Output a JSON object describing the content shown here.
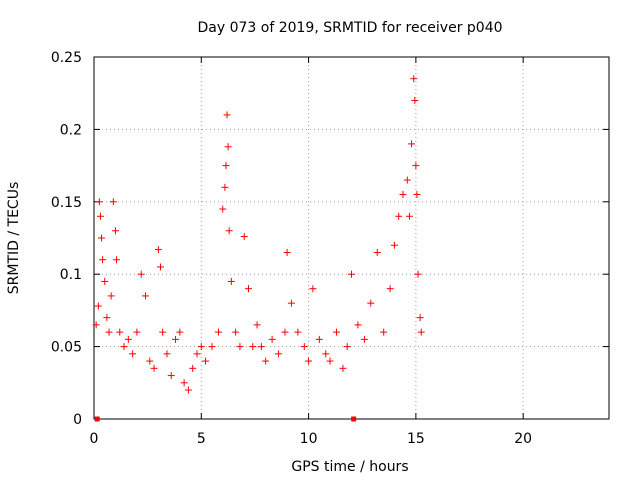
{
  "chart_data": {
    "type": "scatter",
    "title": "Day 073 of 2019, SRMTID for receiver p040",
    "xlabel": "GPS time / hours",
    "ylabel": "SRMTID / TECUs",
    "xlim": [
      0,
      24
    ],
    "ylim": [
      0,
      0.25
    ],
    "xticks": [
      0,
      5,
      10,
      15,
      20
    ],
    "yticks": [
      0,
      0.05,
      0.1,
      0.15,
      0.2,
      0.25
    ],
    "xtick_labels": [
      "0",
      "5",
      "10",
      "15",
      "20"
    ],
    "ytick_labels": [
      "0",
      "0.05",
      "0.1",
      "0.15",
      "0.2",
      "0.25"
    ],
    "grid": true,
    "marker": "+",
    "series": [
      {
        "name": "SRMTID",
        "color": "#ff0000",
        "points": [
          [
            0.1,
            0.065
          ],
          [
            0.2,
            0.078
          ],
          [
            0.25,
            0.15
          ],
          [
            0.3,
            0.14
          ],
          [
            0.35,
            0.125
          ],
          [
            0.4,
            0.11
          ],
          [
            0.5,
            0.095
          ],
          [
            0.6,
            0.07
          ],
          [
            0.7,
            0.06
          ],
          [
            0.8,
            0.085
          ],
          [
            0.9,
            0.15
          ],
          [
            1.0,
            0.13
          ],
          [
            1.05,
            0.11
          ],
          [
            1.2,
            0.06
          ],
          [
            1.4,
            0.05
          ],
          [
            1.6,
            0.055
          ],
          [
            1.8,
            0.045
          ],
          [
            2.0,
            0.06
          ],
          [
            2.2,
            0.1
          ],
          [
            2.4,
            0.085
          ],
          [
            2.6,
            0.04
          ],
          [
            2.8,
            0.035
          ],
          [
            3.0,
            0.117
          ],
          [
            3.1,
            0.105
          ],
          [
            3.2,
            0.06
          ],
          [
            3.4,
            0.045
          ],
          [
            3.6,
            0.03
          ],
          [
            3.8,
            0.055
          ],
          [
            4.0,
            0.06
          ],
          [
            4.2,
            0.025
          ],
          [
            4.4,
            0.02
          ],
          [
            4.6,
            0.035
          ],
          [
            4.8,
            0.045
          ],
          [
            5.0,
            0.05
          ],
          [
            5.2,
            0.04
          ],
          [
            5.5,
            0.05
          ],
          [
            5.8,
            0.06
          ],
          [
            6.0,
            0.145
          ],
          [
            6.1,
            0.16
          ],
          [
            6.15,
            0.175
          ],
          [
            6.2,
            0.21
          ],
          [
            6.25,
            0.188
          ],
          [
            6.3,
            0.13
          ],
          [
            6.4,
            0.095
          ],
          [
            6.6,
            0.06
          ],
          [
            6.8,
            0.05
          ],
          [
            7.0,
            0.126
          ],
          [
            7.2,
            0.09
          ],
          [
            7.4,
            0.05
          ],
          [
            7.6,
            0.065
          ],
          [
            7.8,
            0.05
          ],
          [
            8.0,
            0.04
          ],
          [
            8.3,
            0.055
          ],
          [
            8.6,
            0.045
          ],
          [
            8.9,
            0.06
          ],
          [
            9.0,
            0.115
          ],
          [
            9.2,
            0.08
          ],
          [
            9.5,
            0.06
          ],
          [
            9.8,
            0.05
          ],
          [
            10.0,
            0.04
          ],
          [
            10.2,
            0.09
          ],
          [
            10.5,
            0.055
          ],
          [
            10.8,
            0.045
          ],
          [
            11.0,
            0.04
          ],
          [
            11.3,
            0.06
          ],
          [
            11.6,
            0.035
          ],
          [
            11.8,
            0.05
          ],
          [
            12.0,
            0.1
          ],
          [
            12.3,
            0.065
          ],
          [
            12.6,
            0.055
          ],
          [
            12.9,
            0.08
          ],
          [
            13.2,
            0.115
          ],
          [
            13.5,
            0.06
          ],
          [
            13.8,
            0.09
          ],
          [
            14.0,
            0.12
          ],
          [
            14.2,
            0.14
          ],
          [
            14.4,
            0.155
          ],
          [
            14.6,
            0.165
          ],
          [
            14.7,
            0.14
          ],
          [
            14.8,
            0.19
          ],
          [
            14.9,
            0.235
          ],
          [
            14.95,
            0.22
          ],
          [
            15.0,
            0.175
          ],
          [
            15.05,
            0.155
          ],
          [
            15.1,
            0.1
          ],
          [
            15.2,
            0.07
          ],
          [
            15.25,
            0.06
          ]
        ]
      }
    ],
    "extra_markers": [
      {
        "x": 0.15,
        "y": 0
      },
      {
        "x": 12.1,
        "y": 0
      }
    ]
  }
}
